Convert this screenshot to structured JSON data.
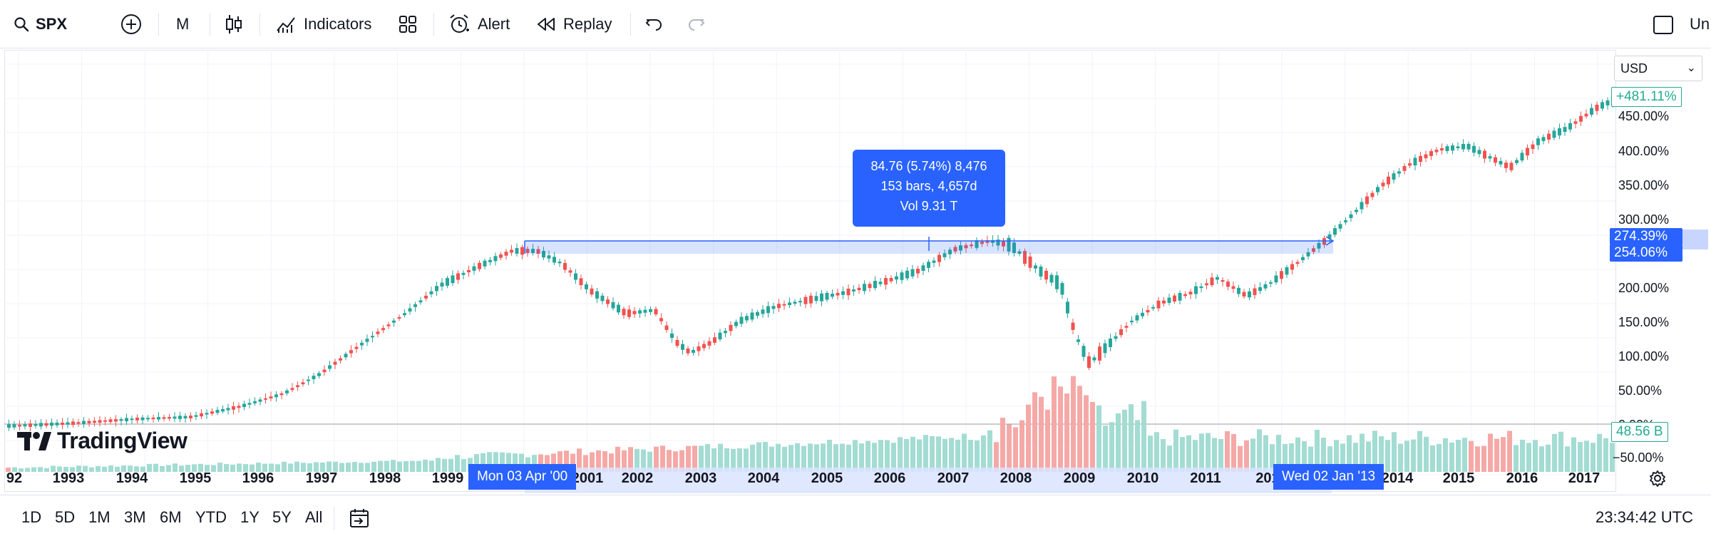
{
  "toolbar": {
    "symbol": "SPX",
    "interval": "M",
    "indicators_label": "Indicators",
    "alert_label": "Alert",
    "replay_label": "Replay",
    "right_cut_label": "Un"
  },
  "chart": {
    "currency": "USD",
    "price_axis_labels": [
      "450.00%",
      "400.00%",
      "350.00%",
      "300.00%",
      "200.00%",
      "150.00%",
      "100.00%",
      "50.00%",
      "0.00%",
      "−50.00%"
    ],
    "last_change_badge": "+481.11%",
    "measure_upper_badge": "274.39%",
    "measure_lower_badge": "254.06%",
    "volume_badge": "48.56 B",
    "time_axis_labels": [
      "92",
      "1993",
      "1994",
      "1995",
      "1996",
      "1997",
      "1998",
      "1999",
      "2001",
      "2002",
      "2003",
      "2004",
      "2005",
      "2006",
      "2007",
      "2008",
      "2009",
      "2010",
      "2011",
      "201",
      "2014",
      "2015",
      "2016",
      "2017"
    ],
    "start_date_pill": "Mon 03 Apr '00",
    "end_date_pill": "Wed 02 Jan '13",
    "measure": {
      "line1": "84.76 (5.74%) 8,476",
      "line2": "153 bars, 4,657d",
      "line3": "Vol 9.31 T"
    },
    "logo_text": "TradingView",
    "colors": {
      "up": "#26a69a",
      "down": "#ef5350",
      "accent": "#2962ff",
      "grid": "#f0f3fa"
    }
  },
  "bottombar": {
    "ranges": [
      "1D",
      "5D",
      "1M",
      "3M",
      "6M",
      "YTD",
      "1Y",
      "5Y",
      "All"
    ],
    "clock": "23:34:42 UTC"
  }
}
